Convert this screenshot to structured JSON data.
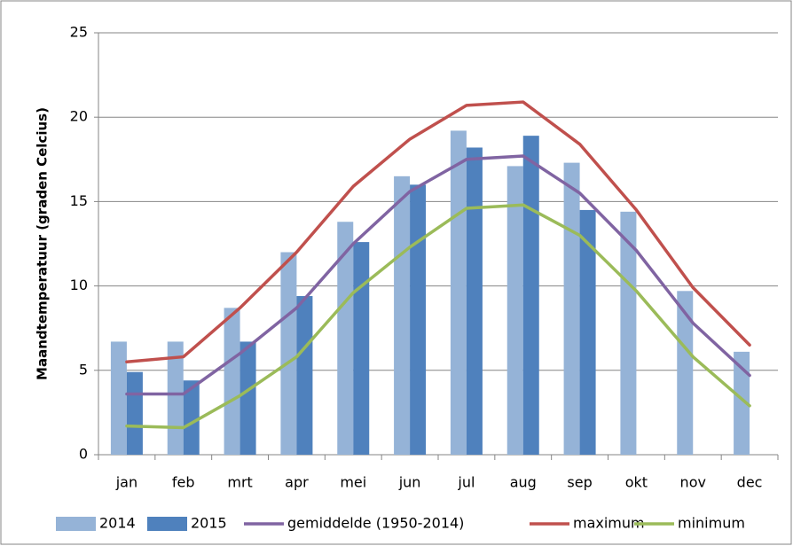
{
  "chart_data": {
    "type": "bar-line",
    "y_label": "Maandtemperatuur (graden Celcius)",
    "categories": [
      "jan",
      "feb",
      "mrt",
      "apr",
      "mei",
      "jun",
      "jul",
      "aug",
      "sep",
      "okt",
      "nov",
      "dec"
    ],
    "series": [
      {
        "name": "2014",
        "kind": "bar",
        "color": "#95b3d7",
        "values": [
          6.7,
          6.7,
          8.7,
          12.0,
          13.8,
          16.5,
          19.2,
          17.1,
          17.3,
          14.4,
          9.7,
          6.1
        ]
      },
      {
        "name": "2015",
        "kind": "bar",
        "color": "#4f81bd",
        "values": [
          4.9,
          4.4,
          6.7,
          9.4,
          12.6,
          16.0,
          18.2,
          18.9,
          14.5,
          null,
          null,
          null
        ]
      },
      {
        "name": "gemiddelde (1950-2014)",
        "kind": "line",
        "color": "#8064a2",
        "values": [
          3.6,
          3.6,
          6.0,
          8.7,
          12.5,
          15.6,
          17.5,
          17.7,
          15.5,
          12.1,
          7.8,
          4.7
        ]
      },
      {
        "name": "maximum",
        "kind": "line",
        "color": "#c0504d",
        "values": [
          5.5,
          5.8,
          8.7,
          12.0,
          15.9,
          18.7,
          20.7,
          20.9,
          18.4,
          14.5,
          9.9,
          6.5
        ]
      },
      {
        "name": "minimum",
        "kind": "line",
        "color": "#9bbb59",
        "values": [
          1.7,
          1.6,
          3.5,
          5.8,
          9.6,
          12.3,
          14.6,
          14.8,
          13.0,
          9.7,
          5.8,
          2.9
        ]
      }
    ],
    "ylim": [
      0,
      25
    ],
    "yticks": [
      0,
      5,
      10,
      15,
      20,
      25
    ],
    "grid": true,
    "legend": "bottom"
  }
}
